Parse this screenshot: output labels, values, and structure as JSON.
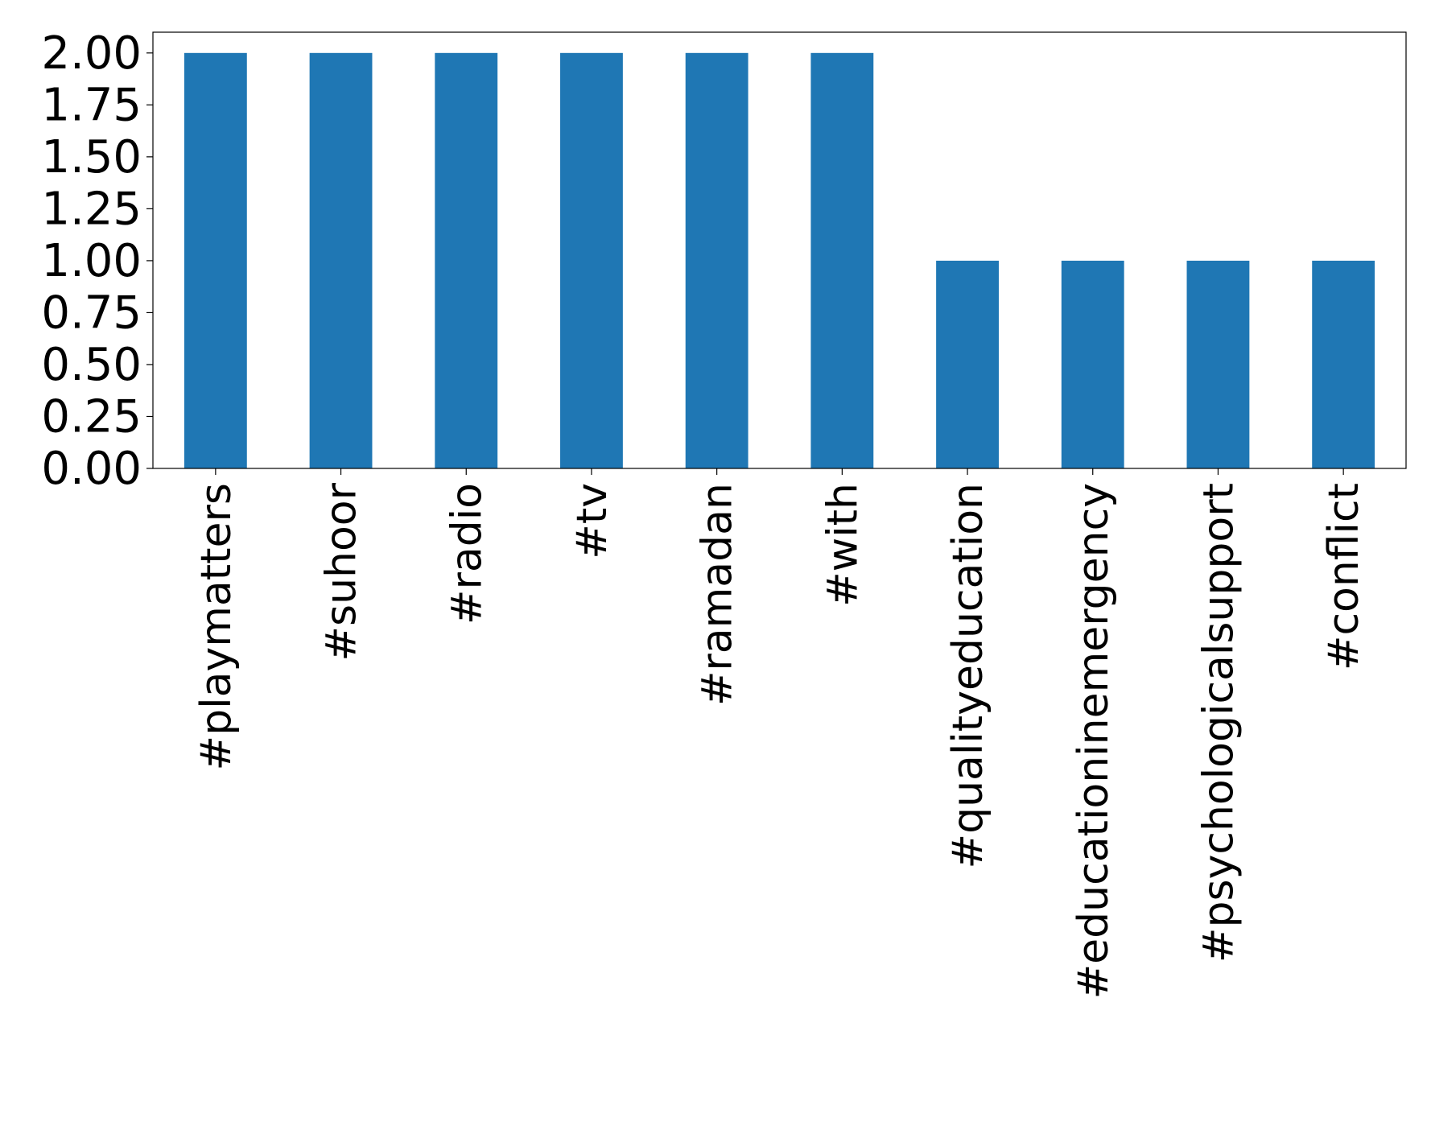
{
  "chart_data": {
    "type": "bar",
    "title": "",
    "xlabel": "",
    "ylabel": "",
    "categories": [
      "#playmatters",
      "#suhoor",
      "#radio",
      "#tv",
      "#ramadan",
      "#with",
      "#qualityeducation",
      "#educationinemergency",
      "#psychologicalsupport",
      "#conflict"
    ],
    "values": [
      2,
      2,
      2,
      2,
      2,
      2,
      1,
      1,
      1,
      1
    ],
    "ylim": [
      0,
      2.1
    ],
    "yticks": [
      0.0,
      0.25,
      0.5,
      0.75,
      1.0,
      1.25,
      1.5,
      1.75,
      2.0
    ],
    "ytick_labels": [
      "0.00",
      "0.25",
      "0.50",
      "0.75",
      "1.00",
      "1.25",
      "1.50",
      "1.75",
      "2.00"
    ],
    "bar_color": "#1f77b4",
    "grid": false,
    "legend": "none"
  }
}
